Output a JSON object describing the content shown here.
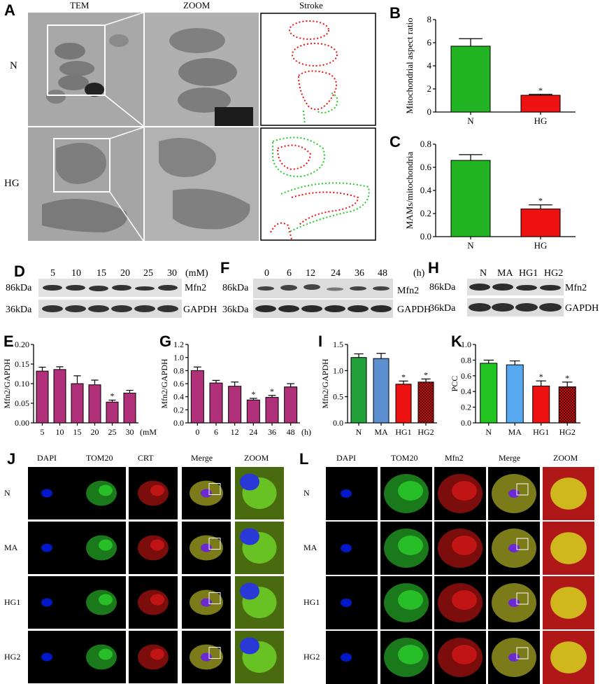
{
  "panels": {
    "A": "A",
    "B": "B",
    "C": "C",
    "D": "D",
    "E": "E",
    "F": "F",
    "G": "G",
    "H": "H",
    "I": "I",
    "J": "J",
    "K": "K",
    "L": "L"
  },
  "panel_a": {
    "col_tem": "TEM",
    "col_zoom": "ZOOM",
    "col_stroke": "Stroke",
    "row_n": "N",
    "row_hg": "HG"
  },
  "blots": {
    "d": {
      "lanes": [
        "5",
        "10",
        "15",
        "20",
        "25",
        "30"
      ],
      "unit": "(mM)",
      "mw_top": "86kDa",
      "mw_bottom": "36kDa",
      "protein": "Mfn2",
      "control": "GAPDH"
    },
    "f": {
      "lanes": [
        "0",
        "6",
        "12",
        "24",
        "36",
        "48"
      ],
      "unit": "(h)",
      "mw_top": "86kDa",
      "mw_bottom": "36kDa",
      "protein": "Mfn2",
      "control": "GAPDH"
    },
    "h": {
      "lanes": [
        "N",
        "MA",
        "HG1",
        "HG2"
      ],
      "mw_top": "86kDa",
      "mw_bottom": "36kDa",
      "protein": "Mfn2",
      "control": "GAPDH"
    }
  },
  "micro_j": {
    "cols": [
      "DAPI",
      "TOM20",
      "CRT",
      "Merge",
      "ZOOM"
    ],
    "rows": [
      "N",
      "MA",
      "HG1",
      "HG2"
    ]
  },
  "micro_l": {
    "cols": [
      "DAPI",
      "TOM20",
      "Mfn2",
      "Merge",
      "ZOOM"
    ],
    "rows": [
      "N",
      "MA",
      "HG1",
      "HG2"
    ]
  },
  "colors": {
    "green": "#22b422",
    "red": "#ee1111",
    "magenta": "#b0307a",
    "blue": "#6a9ad6"
  },
  "chart_data": [
    {
      "id": "B",
      "type": "bar",
      "categories": [
        "N",
        "HG"
      ],
      "values": [
        5.7,
        1.45
      ],
      "errors": [
        0.65,
        0.08
      ],
      "ylabel": "Mitochondrial aspect ratio",
      "ylim": [
        0,
        8
      ],
      "yticks": [
        "0",
        "2",
        "4",
        "6",
        "8"
      ],
      "significance": [
        "",
        "*"
      ]
    },
    {
      "id": "C",
      "type": "bar",
      "categories": [
        "N",
        "HG"
      ],
      "values": [
        0.66,
        0.24
      ],
      "errors": [
        0.05,
        0.035
      ],
      "ylabel": "MAMs/mitochondria",
      "ylim": [
        0,
        0.8
      ],
      "yticks": [
        "0.0",
        "0.2",
        "0.4",
        "0.6",
        "0.8"
      ],
      "significance": [
        "",
        "*"
      ]
    },
    {
      "id": "E",
      "type": "bar",
      "categories": [
        "5",
        "10",
        "15",
        "20",
        "25",
        "30"
      ],
      "values": [
        0.132,
        0.136,
        0.1,
        0.097,
        0.053,
        0.076
      ],
      "errors": [
        0.01,
        0.007,
        0.02,
        0.012,
        0.005,
        0.007
      ],
      "ylabel": "Mfn2/GAPDH",
      "xunit": "(mM)",
      "ylim": [
        0,
        0.2
      ],
      "yticks": [
        "0.00",
        "0.05",
        "0.10",
        "0.15",
        "0.20"
      ],
      "significance": [
        "",
        "",
        "",
        "",
        "*",
        ""
      ]
    },
    {
      "id": "G",
      "type": "bar",
      "categories": [
        "0",
        "6",
        "12",
        "24",
        "36",
        "48"
      ],
      "values": [
        0.8,
        0.61,
        0.56,
        0.35,
        0.39,
        0.55
      ],
      "errors": [
        0.055,
        0.04,
        0.065,
        0.025,
        0.03,
        0.05
      ],
      "ylabel": "Mfn2/GAPDH",
      "xunit": "(h)",
      "ylim": [
        0,
        1.2
      ],
      "yticks": [
        "0.0",
        "0.2",
        "0.4",
        "0.6",
        "0.8",
        "1.0",
        "1.2"
      ],
      "significance": [
        "",
        "",
        "",
        "*",
        "*",
        ""
      ]
    },
    {
      "id": "I",
      "type": "bar",
      "categories": [
        "N",
        "MA",
        "HG1",
        "HG2"
      ],
      "values": [
        1.25,
        1.23,
        0.74,
        0.78
      ],
      "errors": [
        0.07,
        0.1,
        0.06,
        0.06
      ],
      "ylabel": "Mfn2/GAPDH",
      "ylim": [
        0,
        1.5
      ],
      "yticks": [
        "0.0",
        "0.5",
        "1.0",
        "1.5"
      ],
      "significance": [
        "",
        "",
        "*",
        "*"
      ]
    },
    {
      "id": "K",
      "type": "bar",
      "categories": [
        "N",
        "MA",
        "HG1",
        "HG2"
      ],
      "values": [
        0.76,
        0.74,
        0.47,
        0.46
      ],
      "errors": [
        0.04,
        0.05,
        0.065,
        0.06
      ],
      "ylabel": "PCC",
      "ylim": [
        0,
        1.0
      ],
      "yticks": [
        "0.0",
        "0.2",
        "0.4",
        "0.6",
        "0.8",
        "1.0"
      ],
      "significance": [
        "",
        "",
        "*",
        "*"
      ]
    }
  ]
}
